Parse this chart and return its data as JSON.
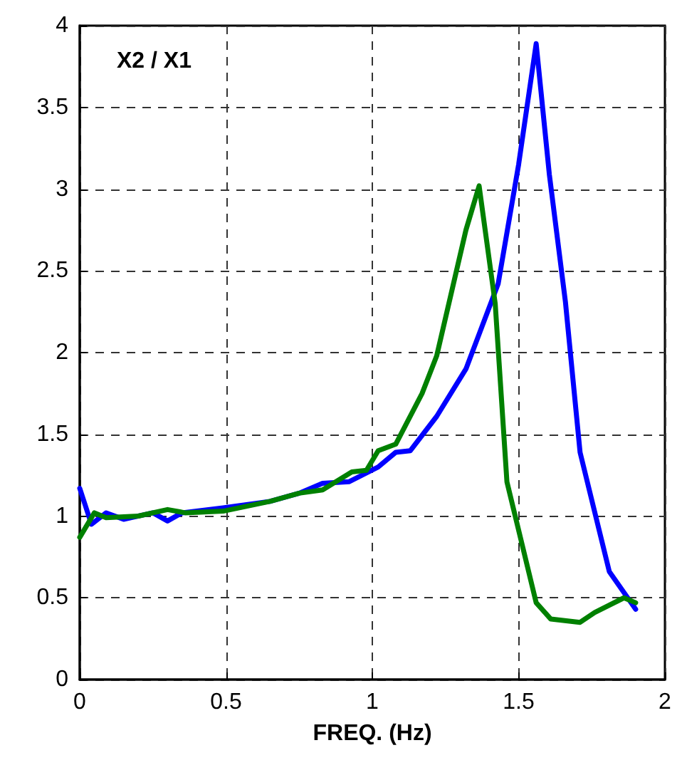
{
  "chart_data": {
    "type": "line",
    "xlabel": "FREQ. (Hz)",
    "annotations": [
      "X2 / X1"
    ],
    "xlim": [
      0,
      2
    ],
    "xticks": [
      0,
      0.5,
      1,
      1.5,
      2
    ],
    "ylim": [
      0,
      4
    ],
    "yticks": [
      0,
      0.5,
      1,
      1.5,
      2,
      2.5,
      3,
      3.5,
      4
    ],
    "grid": true,
    "marker": "none",
    "line_style": "solid",
    "series": [
      {
        "color": "#0000ff",
        "x": [
          0,
          0.04,
          0.09,
          0.15,
          0.25,
          0.3,
          0.35,
          0.49,
          0.65,
          0.75,
          0.83,
          0.92,
          1.02,
          1.08,
          1.13,
          1.22,
          1.32,
          1.43,
          1.5,
          1.56,
          1.605,
          1.66,
          1.71,
          1.81,
          1.9
        ],
        "values": [
          1.17,
          0.95,
          1.02,
          0.98,
          1.02,
          0.97,
          1.02,
          1.05,
          1.09,
          1.14,
          1.2,
          1.21,
          1.3,
          1.39,
          1.4,
          1.61,
          1.9,
          2.42,
          3.15,
          3.89,
          3.09,
          2.31,
          1.39,
          0.66,
          0.43
        ]
      },
      {
        "color": "#008000",
        "x": [
          0,
          0.05,
          0.09,
          0.2,
          0.3,
          0.36,
          0.49,
          0.65,
          0.75,
          0.83,
          0.93,
          0.98,
          1.02,
          1.08,
          1.17,
          1.22,
          1.32,
          1.365,
          1.42,
          1.46,
          1.56,
          1.61,
          1.71,
          1.76,
          1.86,
          1.9
        ],
        "values": [
          0.87,
          1.02,
          0.99,
          1.0,
          1.04,
          1.02,
          1.03,
          1.09,
          1.14,
          1.16,
          1.27,
          1.28,
          1.4,
          1.44,
          1.75,
          1.98,
          2.75,
          3.02,
          2.3,
          1.21,
          0.47,
          0.37,
          0.35,
          0.41,
          0.5,
          0.47
        ]
      }
    ]
  }
}
